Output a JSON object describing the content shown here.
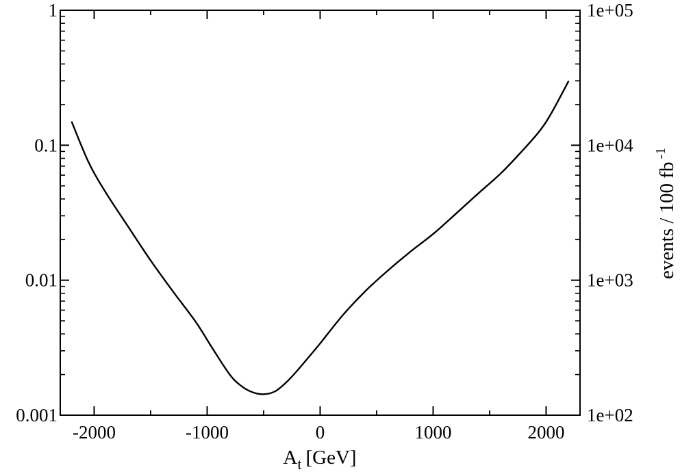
{
  "chart_data": {
    "type": "line",
    "xlabel": "A",
    "xlabel_sub": "t",
    "xlabel_unit": "[GeV]",
    "ylabel_right": "events / 100 fb",
    "ylabel_right_sup": "-1",
    "x_scale": "linear",
    "y_scale": "log",
    "xlim": [
      -2300,
      2300
    ],
    "ylim": [
      0.001,
      1
    ],
    "y2lim": [
      100,
      100000
    ],
    "x_ticks": [
      -2000,
      -1000,
      0,
      1000,
      2000
    ],
    "x_tick_labels": [
      "-2000",
      "-1000",
      "0",
      "1000",
      "2000"
    ],
    "y_ticks": [
      0.001,
      0.01,
      0.1,
      1
    ],
    "y_tick_labels": [
      "0.001",
      "0.01",
      "0.1",
      "1"
    ],
    "y2_ticks": [
      100,
      1000,
      10000,
      100000
    ],
    "y2_tick_labels": [
      "1e+02",
      "1e+03",
      "1e+04",
      "1e+05"
    ],
    "grid": false,
    "series": [
      {
        "x": [
          -2200,
          -2050,
          -1900,
          -1700,
          -1500,
          -1300,
          -1100,
          -950,
          -800,
          -700,
          -600,
          -500,
          -400,
          -300,
          -200,
          -100,
          0,
          200,
          400,
          600,
          800,
          1000,
          1200,
          1400,
          1600,
          1800,
          1950,
          2050,
          2200
        ],
        "y": [
          0.15,
          0.075,
          0.045,
          0.025,
          0.014,
          0.0082,
          0.0049,
          0.0031,
          0.002,
          0.00165,
          0.00148,
          0.00143,
          0.0015,
          0.00175,
          0.00215,
          0.0027,
          0.0034,
          0.0055,
          0.0083,
          0.0118,
          0.0163,
          0.022,
          0.031,
          0.044,
          0.062,
          0.093,
          0.13,
          0.175,
          0.3
        ]
      }
    ]
  }
}
